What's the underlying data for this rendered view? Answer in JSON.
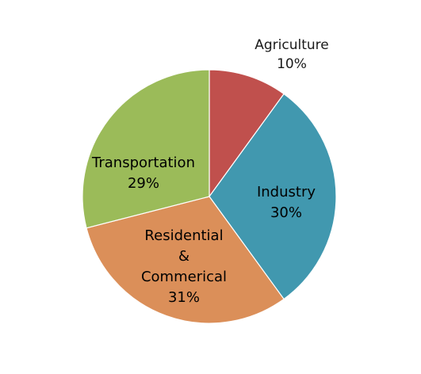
{
  "chart_data": {
    "type": "pie",
    "title": "",
    "start_angle_deg": 0,
    "direction": "clockwise",
    "legend": "none",
    "slices": [
      {
        "label": "Agriculture",
        "value": 10,
        "value_label": "10%",
        "color": "#C0504D"
      },
      {
        "label": "Industry",
        "value": 30,
        "value_label": "30%",
        "color": "#4198AF"
      },
      {
        "label": "Residential & Commerical",
        "value": 31,
        "value_label": "31%",
        "color": "#DB8F59"
      },
      {
        "label": "Transportation",
        "value": 29,
        "value_label": "29%",
        "color": "#9BBB59"
      }
    ],
    "labels": {
      "agriculture": {
        "line1": "Agriculture",
        "line2": "10%"
      },
      "industry": {
        "line1": "Industry",
        "line2": "30%"
      },
      "residential": {
        "line1": "Residential",
        "line2": "&",
        "line3": "Commerical",
        "line4": "31%"
      },
      "transportation": {
        "line1": "Transportation",
        "line2": "29%"
      }
    }
  }
}
